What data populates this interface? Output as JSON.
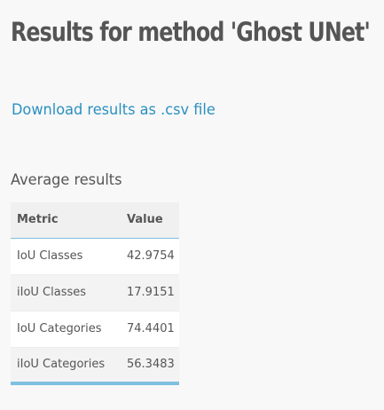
{
  "header": {
    "title": "Results for method 'Ghost UNet'"
  },
  "links": {
    "download_label": "Download results as .csv file"
  },
  "average_results": {
    "heading": "Average results",
    "columns": [
      "Metric",
      "Value"
    ],
    "rows": [
      {
        "metric": "IoU Classes",
        "value": "42.9754"
      },
      {
        "metric": "iIoU Classes",
        "value": "17.9151"
      },
      {
        "metric": "IoU Categories",
        "value": "74.4401"
      },
      {
        "metric": "iIoU Categories",
        "value": "56.3483"
      }
    ]
  },
  "colors": {
    "link": "#2a90c0",
    "accent_border": "#7fbfdf",
    "text": "#555555",
    "background": "#f8f8f8"
  }
}
